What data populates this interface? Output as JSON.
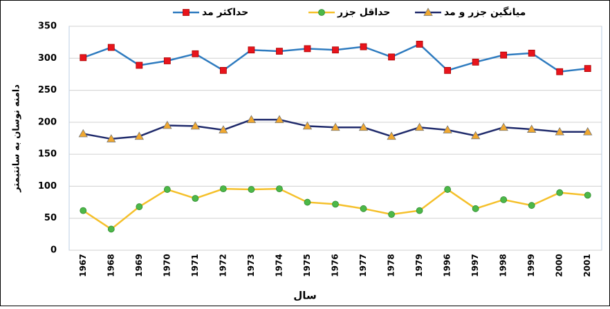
{
  "chart_data": {
    "type": "line",
    "x_label": "سال",
    "y_label": "دامنه نوسان به سانتیمتر",
    "categories": [
      "1967",
      "1968",
      "1969",
      "1970",
      "1971",
      "1972",
      "1973",
      "1974",
      "1975",
      "1976",
      "1977",
      "1978",
      "1979",
      "1996",
      "1997",
      "1998",
      "1999",
      "2000",
      "2001"
    ],
    "series": [
      {
        "name": "حداکثر مد",
        "color": "#2e7bbf",
        "marker_color": "#e8141c",
        "marker": "square",
        "values": [
          301,
          317,
          289,
          296,
          307,
          281,
          313,
          311,
          315,
          313,
          318,
          302,
          322,
          281,
          294,
          305,
          308,
          279,
          284
        ]
      },
      {
        "name": "حداقل جزر",
        "color": "#f5c02a",
        "marker_color": "#4cb848",
        "marker": "circle",
        "values": [
          62,
          33,
          68,
          95,
          81,
          96,
          95,
          96,
          75,
          72,
          65,
          56,
          62,
          95,
          65,
          79,
          70,
          90,
          86
        ]
      },
      {
        "name": "میانگین جزر و مد",
        "color": "#1f2a6b",
        "marker_color": "#f0a830",
        "marker": "triangle",
        "values": [
          182,
          174,
          178,
          195,
          194,
          188,
          204,
          204,
          194,
          192,
          192,
          178,
          192,
          188,
          179,
          192,
          189,
          185,
          185
        ]
      }
    ],
    "ylim": [
      0,
      350
    ],
    "yticks": [
      0,
      50,
      100,
      150,
      200,
      250,
      300,
      350
    ],
    "grid": true
  }
}
